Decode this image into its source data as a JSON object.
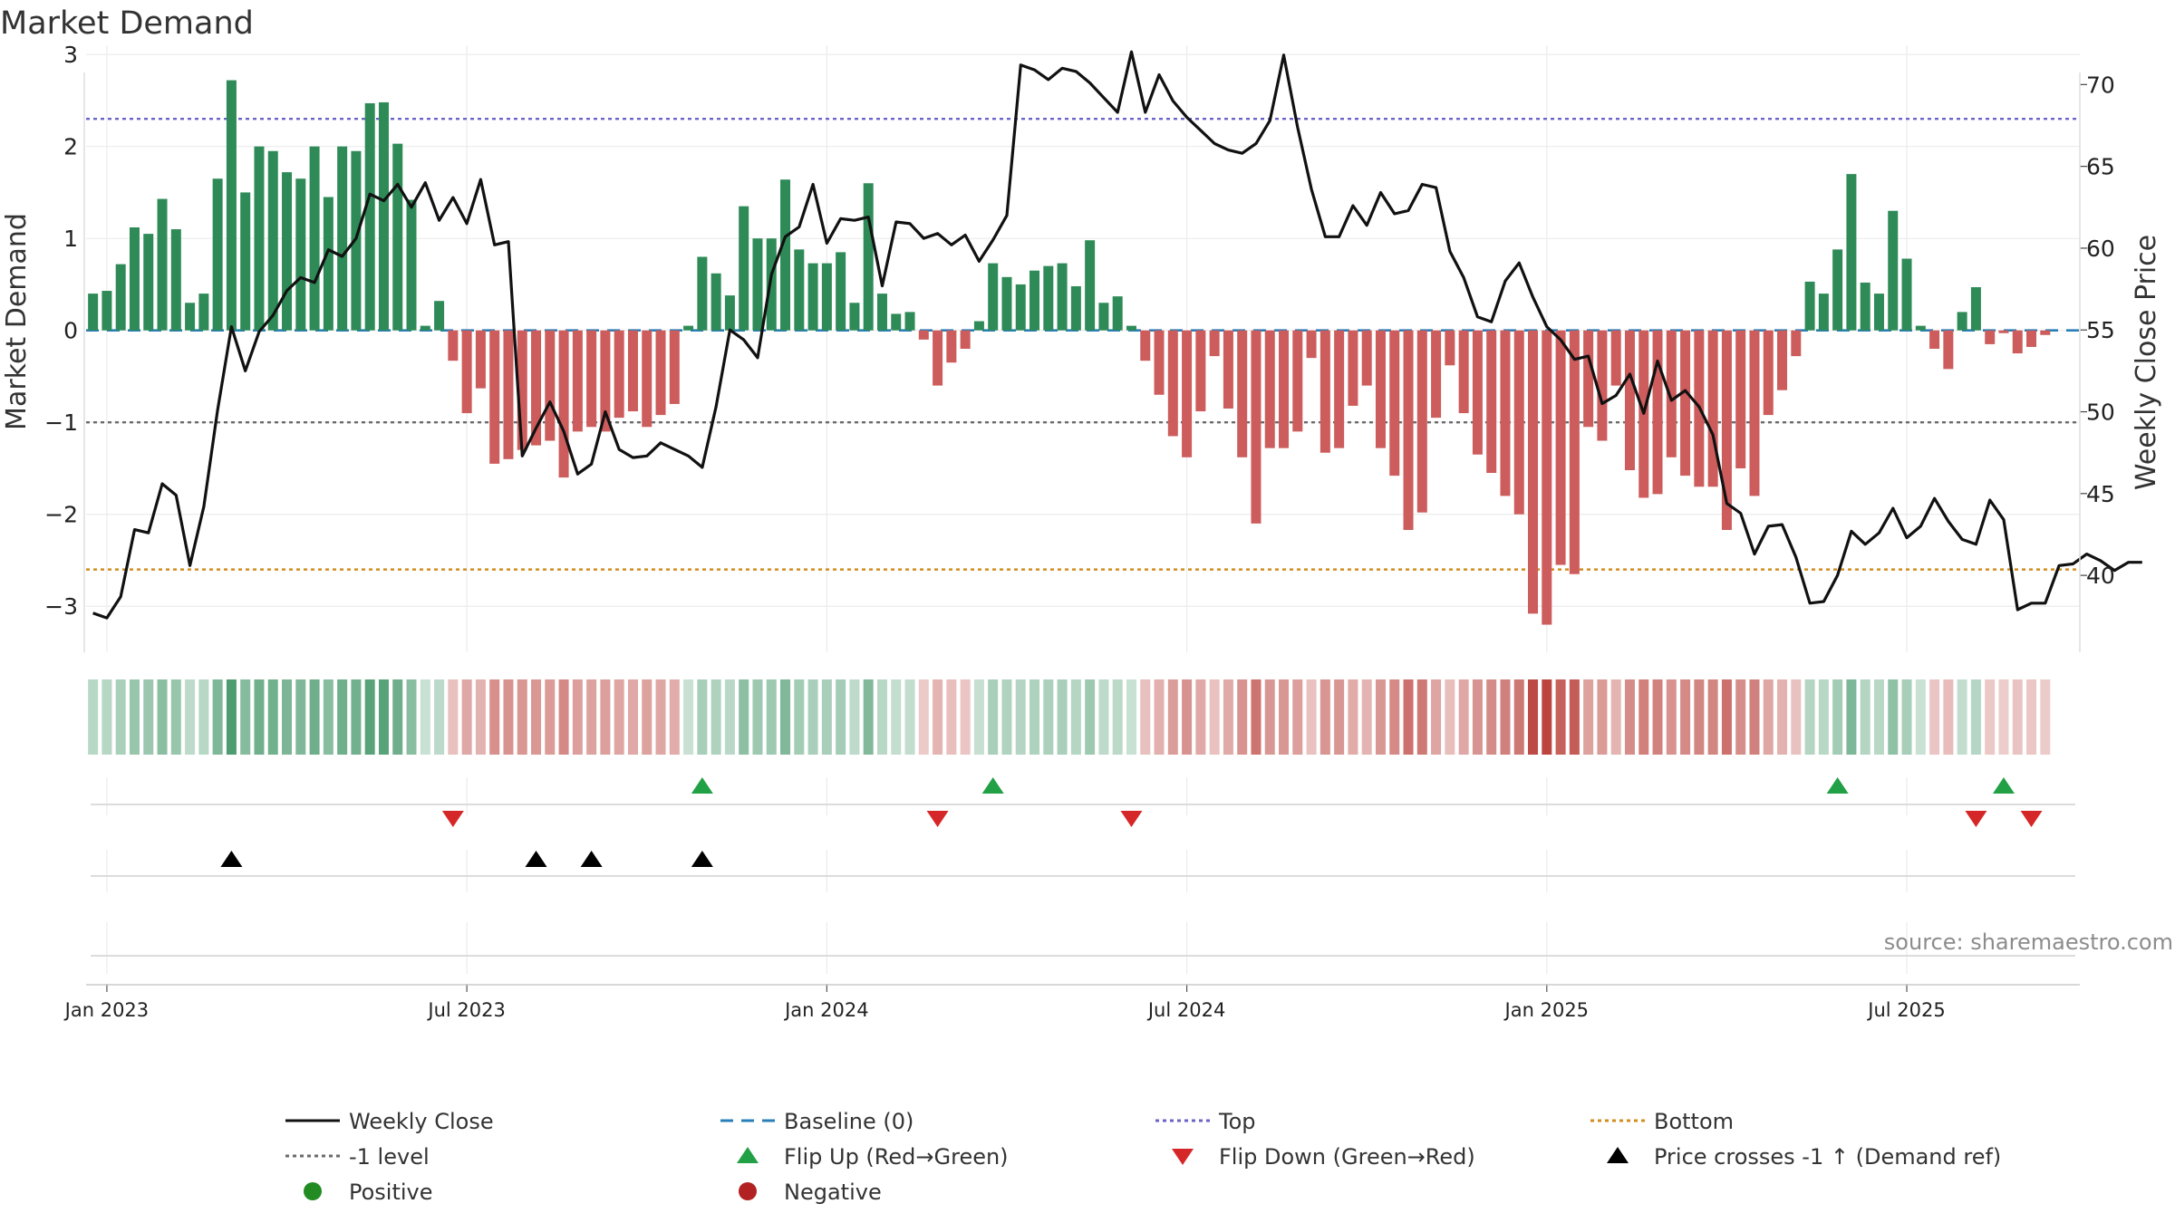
{
  "chart_data": {
    "type": "bar",
    "title": "Market Demand",
    "ylabel_left": "Market Demand",
    "ylabel_right": "Weekly Close Price",
    "source": "source: sharemaestro.com",
    "ylim_left": [
      -3.5,
      3.1
    ],
    "yticks_left": [
      3,
      2,
      1,
      0,
      -1,
      -2,
      -3
    ],
    "ytick_labels_left": [
      "3",
      "2",
      "1",
      "0",
      "−1",
      "−2",
      "−3"
    ],
    "ylim_right": [
      35.3,
      72.4
    ],
    "yticks_right": [
      70,
      65,
      60,
      55,
      50,
      45,
      40
    ],
    "ytick_labels_right": [
      "70",
      "65",
      "60",
      "55",
      "50",
      "45",
      "40"
    ],
    "reference_lines": {
      "top": 2.3,
      "minus_one": -1,
      "bottom": -2.6,
      "baseline": 0
    },
    "x_ticks": [
      {
        "index": 1,
        "label": "Jan 2023"
      },
      {
        "index": 27,
        "label": "Jul 2023"
      },
      {
        "index": 53,
        "label": "Jan 2024"
      },
      {
        "index": 79,
        "label": "Jul 2024"
      },
      {
        "index": 105,
        "label": "Jan 2025"
      },
      {
        "index": 131,
        "label": "Jul 2025"
      }
    ],
    "weeks": 144,
    "demand": [
      0.4,
      0.43,
      0.72,
      1.12,
      1.05,
      1.43,
      1.1,
      0.3,
      0.4,
      1.65,
      2.72,
      1.5,
      2.0,
      1.95,
      1.72,
      1.65,
      2.0,
      1.45,
      2.0,
      1.95,
      2.47,
      2.48,
      2.03,
      1.42,
      0.05,
      0.32,
      -0.33,
      -0.9,
      -0.63,
      -1.45,
      -1.4,
      -1.3,
      -1.25,
      -1.2,
      -1.6,
      -1.1,
      -1.05,
      -1.1,
      -0.95,
      -0.88,
      -1.05,
      -0.92,
      -0.8,
      0.05,
      0.8,
      0.62,
      0.38,
      1.35,
      1.0,
      1.0,
      1.64,
      0.88,
      0.73,
      0.73,
      0.85,
      0.3,
      1.6,
      0.4,
      0.18,
      0.2,
      -0.1,
      -0.6,
      -0.35,
      -0.2,
      0.1,
      0.73,
      0.58,
      0.5,
      0.65,
      0.7,
      0.73,
      0.48,
      0.98,
      0.3,
      0.37,
      0.05,
      -0.33,
      -0.7,
      -1.15,
      -1.38,
      -0.88,
      -0.28,
      -0.85,
      -1.38,
      -2.1,
      -1.28,
      -1.28,
      -1.1,
      -0.3,
      -1.33,
      -1.28,
      -0.82,
      -0.6,
      -1.28,
      -1.58,
      -2.17,
      -1.98,
      -0.95,
      -0.38,
      -0.9,
      -1.35,
      -1.55,
      -1.8,
      -2.0,
      -3.08,
      -3.2,
      -2.55,
      -2.65,
      -1.05,
      -1.2,
      -0.6,
      -1.52,
      -1.82,
      -1.78,
      -1.38,
      -1.58,
      -1.7,
      -1.7,
      -2.17,
      -1.5,
      -1.8,
      -0.92,
      -0.65,
      -0.28,
      0.53,
      0.4,
      0.88,
      1.7,
      0.52,
      0.4,
      1.3,
      0.78,
      0.05,
      -0.2,
      -0.42,
      0.2,
      0.47,
      -0.15,
      -0.03,
      -0.25,
      -0.18,
      -0.05
    ],
    "price": [
      37.7,
      37.4,
      38.7,
      42.8,
      42.6,
      45.6,
      44.9,
      40.6,
      44.2,
      50.1,
      55.2,
      52.5,
      54.9,
      55.9,
      57.4,
      58.2,
      57.9,
      59.9,
      59.5,
      60.6,
      63.3,
      62.9,
      63.9,
      62.5,
      64.0,
      61.7,
      63.1,
      61.5,
      64.2,
      60.2,
      60.4,
      47.3,
      49.0,
      50.6,
      48.8,
      46.2,
      46.8,
      50.0,
      47.7,
      47.2,
      47.3,
      48.1,
      47.7,
      47.3,
      46.6,
      50.3,
      55.0,
      54.4,
      53.3,
      58.4,
      60.7,
      61.3,
      63.9,
      60.3,
      61.8,
      61.7,
      61.9,
      57.7,
      61.6,
      61.5,
      60.6,
      60.9,
      60.2,
      60.8,
      59.2,
      60.5,
      62.0,
      71.2,
      70.9,
      70.3,
      71.0,
      70.8,
      70.1,
      69.2,
      68.3,
      72.0,
      68.3,
      70.6,
      69.0,
      68.0,
      67.2,
      66.4,
      66.0,
      65.8,
      66.4,
      67.8,
      71.8,
      67.4,
      63.6,
      60.7,
      60.7,
      62.6,
      61.4,
      63.4,
      62.1,
      62.3,
      63.9,
      63.7,
      59.8,
      58.2,
      55.8,
      55.5,
      58.0,
      59.1,
      57.0,
      55.2,
      54.4,
      53.2,
      53.4,
      50.5,
      51.0,
      52.3,
      49.9,
      53.1,
      50.7,
      51.3,
      50.3,
      48.6,
      44.4,
      43.8,
      41.3,
      43.0,
      43.1,
      41.1,
      38.3,
      38.4,
      40.0,
      42.7,
      41.9,
      42.6,
      44.1,
      42.3,
      43.0,
      44.7,
      43.3,
      42.2,
      41.9,
      44.6,
      43.4,
      37.9,
      38.3,
      38.3,
      40.6,
      40.7,
      41.3,
      40.9,
      40.3,
      40.8,
      40.8
    ],
    "flip_up_weeks": [
      44,
      65,
      126,
      138
    ],
    "flip_down_weeks": [
      26,
      61,
      75,
      136,
      140
    ],
    "price_cross_up_weeks": [
      10,
      32,
      36,
      44
    ],
    "legend": [
      {
        "label": "Weekly Close",
        "symbol": "solid-line",
        "color": "#111111"
      },
      {
        "label": "Baseline (0)",
        "symbol": "dashed-line",
        "color": "#2a7fb8"
      },
      {
        "label": "Top",
        "symbol": "dotted-line",
        "color": "#6a63c9"
      },
      {
        "label": "Bottom",
        "symbol": "dotted-line",
        "color": "#d18d1e"
      },
      {
        "label": "-1 level",
        "symbol": "dotted-line",
        "color": "#6b6b6b"
      },
      {
        "label": "Flip Up (Red→Green)",
        "symbol": "triangle-up",
        "color": "#22a045"
      },
      {
        "label": "Flip Down (Green→Red)",
        "symbol": "triangle-down",
        "color": "#d62728"
      },
      {
        "label": "Price crosses -1 ↑ (Demand ref)",
        "symbol": "triangle-up",
        "color": "#000000"
      },
      {
        "label": "Positive",
        "symbol": "circle",
        "color": "#228b22"
      },
      {
        "label": "Negative",
        "symbol": "circle",
        "color": "#b22222"
      }
    ],
    "colors": {
      "positive_bar": "#2e8b57",
      "negative_bar": "#cd5c5c",
      "price_line": "#111111",
      "top_line": "#6a63c9",
      "bottom_line": "#d18d1e",
      "minus_one_line": "#6b6b6b",
      "baseline": "#2a7fb8",
      "grid": "#ebebeb"
    }
  }
}
